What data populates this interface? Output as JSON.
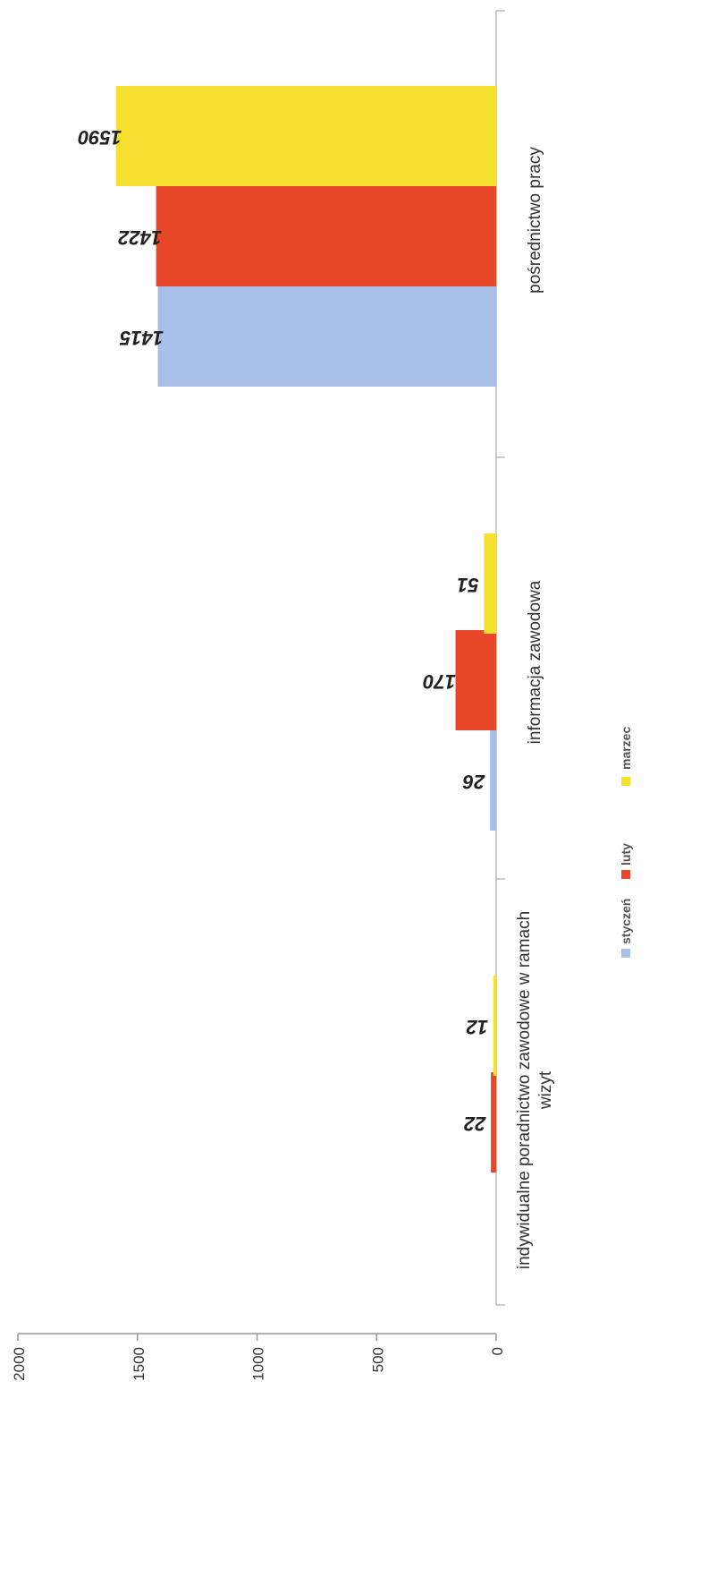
{
  "chart_data": {
    "type": "bar",
    "title": "",
    "xlabel": "",
    "ylabel": "",
    "categories": [
      "pośrednictwo pracy",
      "informacja zawodowa",
      "indywidualne poradnictwo zawodowe w ramach wizyt"
    ],
    "series": [
      {
        "name": "styczeń",
        "values": [
          1415,
          26,
          0
        ],
        "color": "#a8c0e8"
      },
      {
        "name": "luty",
        "values": [
          1422,
          170,
          22
        ],
        "color": "#e8472a"
      },
      {
        "name": "marzec",
        "values": [
          1590,
          51,
          12
        ],
        "color": "#f5e030"
      }
    ],
    "data_labels": [
      [
        "1415",
        "26",
        ""
      ],
      [
        "1422",
        "170",
        "22"
      ],
      [
        "1590",
        "51",
        "12"
      ]
    ],
    "ylim": [
      0,
      2000
    ],
    "ticks": [
      "0",
      "500",
      "1000",
      "1500",
      "2000"
    ],
    "tick_values": [
      0,
      500,
      1000,
      1500,
      2000
    ],
    "grid": false,
    "legend_position": "bottom",
    "orientation": "rotated 90° clockwise"
  }
}
